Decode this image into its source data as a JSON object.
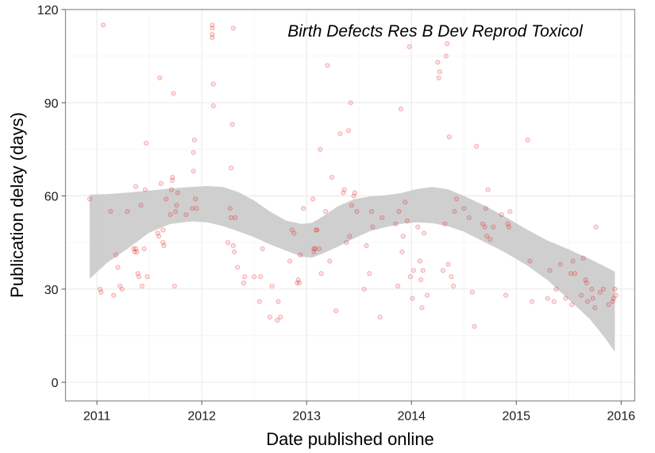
{
  "chart_data": {
    "type": "scatter",
    "title": "Birth Defects Res B Dev Reprod Toxicol",
    "xlabel": "Date published online",
    "ylabel": "Publication delay (days)",
    "xlim": [
      2010.7,
      2016.13
    ],
    "ylim": [
      -6,
      120
    ],
    "x_ticks": [
      2011,
      2012,
      2013,
      2014,
      2015,
      2016
    ],
    "x_tick_labels": [
      "2011",
      "2012",
      "2013",
      "2014",
      "2015",
      "2016"
    ],
    "y_ticks": [
      0,
      30,
      60,
      90,
      120
    ],
    "y_tick_labels": [
      "0",
      "30",
      "60",
      "90",
      "120"
    ],
    "grid": true,
    "legend": "none",
    "point_color": "#e8191c",
    "band_color": "#cccccc",
    "points": [
      [
        2010.93,
        59
      ],
      [
        2011.03,
        30
      ],
      [
        2011.04,
        29
      ],
      [
        2011.06,
        115
      ],
      [
        2011.13,
        55
      ],
      [
        2011.16,
        28
      ],
      [
        2011.18,
        41
      ],
      [
        2011.2,
        37
      ],
      [
        2011.22,
        31
      ],
      [
        2011.24,
        30
      ],
      [
        2011.29,
        55
      ],
      [
        2011.35,
        43
      ],
      [
        2011.36,
        42
      ],
      [
        2011.37,
        63
      ],
      [
        2011.37,
        43
      ],
      [
        2011.38,
        42
      ],
      [
        2011.39,
        35
      ],
      [
        2011.4,
        34
      ],
      [
        2011.42,
        57
      ],
      [
        2011.43,
        31
      ],
      [
        2011.45,
        43
      ],
      [
        2011.46,
        62
      ],
      [
        2011.47,
        77
      ],
      [
        2011.48,
        34
      ],
      [
        2011.58,
        48
      ],
      [
        2011.59,
        47
      ],
      [
        2011.6,
        98
      ],
      [
        2011.61,
        64
      ],
      [
        2011.63,
        45
      ],
      [
        2011.63,
        49
      ],
      [
        2011.64,
        44
      ],
      [
        2011.66,
        59
      ],
      [
        2011.7,
        54
      ],
      [
        2011.71,
        62
      ],
      [
        2011.72,
        65
      ],
      [
        2011.72,
        66
      ],
      [
        2011.73,
        93
      ],
      [
        2011.74,
        31
      ],
      [
        2011.75,
        55
      ],
      [
        2011.76,
        57
      ],
      [
        2011.77,
        61
      ],
      [
        2011.85,
        54
      ],
      [
        2011.91,
        56
      ],
      [
        2011.92,
        68
      ],
      [
        2011.92,
        74
      ],
      [
        2011.93,
        78
      ],
      [
        2011.94,
        59
      ],
      [
        2011.95,
        56
      ],
      [
        2012.1,
        115
      ],
      [
        2012.1,
        114
      ],
      [
        2012.1,
        112
      ],
      [
        2012.1,
        111
      ],
      [
        2012.11,
        96
      ],
      [
        2012.11,
        89
      ],
      [
        2012.25,
        45
      ],
      [
        2012.27,
        56
      ],
      [
        2012.28,
        53
      ],
      [
        2012.28,
        69
      ],
      [
        2012.29,
        83
      ],
      [
        2012.3,
        114
      ],
      [
        2012.3,
        44
      ],
      [
        2012.31,
        42
      ],
      [
        2012.32,
        53
      ],
      [
        2012.34,
        37
      ],
      [
        2012.4,
        32
      ],
      [
        2012.41,
        34
      ],
      [
        2012.5,
        34
      ],
      [
        2012.55,
        26
      ],
      [
        2012.56,
        34
      ],
      [
        2012.58,
        43
      ],
      [
        2012.65,
        21
      ],
      [
        2012.67,
        31
      ],
      [
        2012.72,
        20
      ],
      [
        2012.73,
        26
      ],
      [
        2012.75,
        21
      ],
      [
        2012.84,
        39
      ],
      [
        2012.86,
        49
      ],
      [
        2012.88,
        48
      ],
      [
        2012.91,
        32
      ],
      [
        2012.92,
        33
      ],
      [
        2012.93,
        32
      ],
      [
        2012.94,
        41
      ],
      [
        2012.97,
        56
      ],
      [
        2013.06,
        59
      ],
      [
        2013.07,
        42
      ],
      [
        2013.07,
        43
      ],
      [
        2013.08,
        43
      ],
      [
        2013.09,
        49
      ],
      [
        2013.1,
        49
      ],
      [
        2013.12,
        43
      ],
      [
        2013.13,
        75
      ],
      [
        2013.14,
        35
      ],
      [
        2013.18,
        55
      ],
      [
        2013.2,
        102
      ],
      [
        2013.22,
        39
      ],
      [
        2013.24,
        66
      ],
      [
        2013.28,
        23
      ],
      [
        2013.32,
        80
      ],
      [
        2013.35,
        61
      ],
      [
        2013.36,
        62
      ],
      [
        2013.38,
        45
      ],
      [
        2013.4,
        81
      ],
      [
        2013.41,
        47
      ],
      [
        2013.42,
        90
      ],
      [
        2013.43,
        57
      ],
      [
        2013.45,
        60
      ],
      [
        2013.46,
        61
      ],
      [
        2013.48,
        55
      ],
      [
        2013.55,
        30
      ],
      [
        2013.57,
        44
      ],
      [
        2013.6,
        35
      ],
      [
        2013.62,
        55
      ],
      [
        2013.63,
        50
      ],
      [
        2013.7,
        21
      ],
      [
        2013.72,
        53
      ],
      [
        2013.85,
        51
      ],
      [
        2013.87,
        31
      ],
      [
        2013.88,
        55
      ],
      [
        2013.9,
        88
      ],
      [
        2013.91,
        42
      ],
      [
        2013.92,
        47
      ],
      [
        2013.94,
        58
      ],
      [
        2013.96,
        52
      ],
      [
        2013.98,
        108
      ],
      [
        2013.99,
        34
      ],
      [
        2014.01,
        27
      ],
      [
        2014.02,
        36
      ],
      [
        2014.06,
        50
      ],
      [
        2014.08,
        39
      ],
      [
        2014.09,
        33
      ],
      [
        2014.1,
        24
      ],
      [
        2014.11,
        36
      ],
      [
        2014.12,
        48
      ],
      [
        2014.15,
        28
      ],
      [
        2014.25,
        103
      ],
      [
        2014.26,
        98
      ],
      [
        2014.27,
        100
      ],
      [
        2014.3,
        36
      ],
      [
        2014.32,
        51
      ],
      [
        2014.33,
        105
      ],
      [
        2014.34,
        109
      ],
      [
        2014.35,
        38
      ],
      [
        2014.36,
        79
      ],
      [
        2014.38,
        34
      ],
      [
        2014.4,
        31
      ],
      [
        2014.41,
        55
      ],
      [
        2014.43,
        59
      ],
      [
        2014.5,
        56
      ],
      [
        2014.55,
        53
      ],
      [
        2014.58,
        29
      ],
      [
        2014.6,
        18
      ],
      [
        2014.62,
        76
      ],
      [
        2014.68,
        51
      ],
      [
        2014.7,
        50
      ],
      [
        2014.71,
        56
      ],
      [
        2014.72,
        47
      ],
      [
        2014.73,
        62
      ],
      [
        2014.75,
        46
      ],
      [
        2014.78,
        50
      ],
      [
        2014.86,
        54
      ],
      [
        2014.9,
        28
      ],
      [
        2014.92,
        51
      ],
      [
        2014.93,
        50
      ],
      [
        2014.94,
        55
      ],
      [
        2015.11,
        78
      ],
      [
        2015.13,
        39
      ],
      [
        2015.15,
        26
      ],
      [
        2015.3,
        27
      ],
      [
        2015.32,
        36
      ],
      [
        2015.36,
        26
      ],
      [
        2015.38,
        30
      ],
      [
        2015.42,
        38
      ],
      [
        2015.47,
        27
      ],
      [
        2015.52,
        35
      ],
      [
        2015.53,
        25
      ],
      [
        2015.54,
        39
      ],
      [
        2015.56,
        35
      ],
      [
        2015.62,
        28
      ],
      [
        2015.64,
        40
      ],
      [
        2015.66,
        33
      ],
      [
        2015.67,
        32
      ],
      [
        2015.68,
        26
      ],
      [
        2015.72,
        30
      ],
      [
        2015.73,
        27
      ],
      [
        2015.75,
        24
      ],
      [
        2015.76,
        50
      ],
      [
        2015.8,
        29
      ],
      [
        2015.83,
        30
      ],
      [
        2015.88,
        25
      ],
      [
        2015.92,
        26
      ],
      [
        2015.93,
        27
      ],
      [
        2015.94,
        30
      ],
      [
        2015.95,
        28
      ]
    ],
    "smooth_upper": [
      [
        2010.93,
        60.4
      ],
      [
        2011.1,
        60.6
      ],
      [
        2011.3,
        61.1
      ],
      [
        2011.5,
        61.7
      ],
      [
        2011.7,
        62.4
      ],
      [
        2011.9,
        62.9
      ],
      [
        2012.05,
        63.2
      ],
      [
        2012.2,
        62.9
      ],
      [
        2012.35,
        61.2
      ],
      [
        2012.5,
        58.5
      ],
      [
        2012.65,
        55
      ],
      [
        2012.8,
        52.1
      ],
      [
        2012.95,
        51
      ],
      [
        2013.05,
        51.3
      ],
      [
        2013.15,
        53.3
      ],
      [
        2013.3,
        56.7
      ],
      [
        2013.45,
        58.9
      ],
      [
        2013.6,
        59.8
      ],
      [
        2013.75,
        60.2
      ],
      [
        2013.9,
        60.9
      ],
      [
        2014.05,
        62.2
      ],
      [
        2014.2,
        62.9
      ],
      [
        2014.35,
        62.1
      ],
      [
        2014.5,
        60
      ],
      [
        2014.7,
        56.8
      ],
      [
        2014.9,
        53.2
      ],
      [
        2015.1,
        49.2
      ],
      [
        2015.3,
        45.6
      ],
      [
        2015.5,
        42.8
      ],
      [
        2015.7,
        39.7
      ],
      [
        2015.85,
        37.2
      ],
      [
        2015.94,
        35.6
      ]
    ],
    "smooth_lower": [
      [
        2010.93,
        33.3
      ],
      [
        2011.1,
        38.6
      ],
      [
        2011.3,
        43.2
      ],
      [
        2011.5,
        48.2
      ],
      [
        2011.7,
        51
      ],
      [
        2011.9,
        51.8
      ],
      [
        2012.05,
        51.5
      ],
      [
        2012.2,
        50.3
      ],
      [
        2012.35,
        48.6
      ],
      [
        2012.5,
        46.7
      ],
      [
        2012.65,
        44.4
      ],
      [
        2012.8,
        42.4
      ],
      [
        2012.95,
        40.5
      ],
      [
        2013.05,
        40.1
      ],
      [
        2013.15,
        41.4
      ],
      [
        2013.3,
        43.7
      ],
      [
        2013.45,
        46.3
      ],
      [
        2013.6,
        48.6
      ],
      [
        2013.75,
        49.9
      ],
      [
        2013.9,
        51
      ],
      [
        2014.05,
        51.5
      ],
      [
        2014.2,
        51.2
      ],
      [
        2014.35,
        50.2
      ],
      [
        2014.5,
        48.5
      ],
      [
        2014.7,
        45.1
      ],
      [
        2014.9,
        41.7
      ],
      [
        2015.1,
        37.7
      ],
      [
        2015.3,
        32.8
      ],
      [
        2015.5,
        26.7
      ],
      [
        2015.7,
        20.4
      ],
      [
        2015.85,
        14.1
      ],
      [
        2015.94,
        9.8
      ]
    ]
  }
}
